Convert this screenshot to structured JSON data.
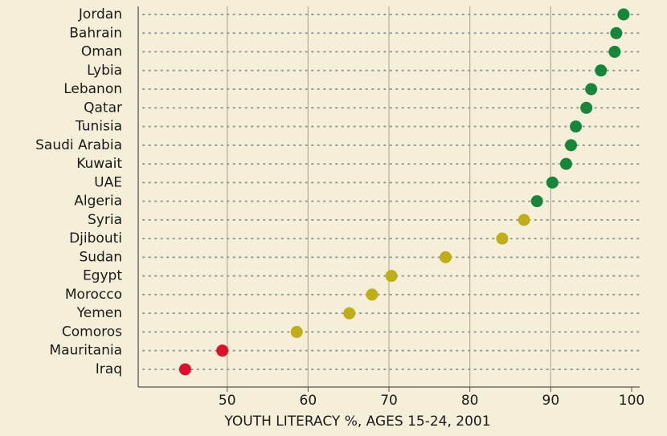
{
  "chart_data": {
    "type": "dot",
    "x_label": "YOUTH LITERACY %, AGES 15-24, 2001",
    "categories": [
      "Jordan",
      "Bahrain",
      "Oman",
      "Lybia",
      "Lebanon",
      "Qatar",
      "Tunisia",
      "Saudi Arabia",
      "Kuwait",
      "UAE",
      "Algeria",
      "Syria",
      "Djibouti",
      "Sudan",
      "Egypt",
      "Morocco",
      "Yemen",
      "Comoros",
      "Mauritania",
      "Iraq"
    ],
    "values": [
      99.0,
      98.1,
      97.9,
      96.2,
      95.0,
      94.4,
      93.1,
      92.5,
      91.9,
      90.2,
      88.3,
      86.7,
      84.0,
      77.0,
      70.3,
      67.9,
      65.1,
      58.6,
      49.4,
      44.8
    ],
    "colors": [
      "#16873a",
      "#16873a",
      "#16873a",
      "#16873a",
      "#16873a",
      "#16873a",
      "#16873a",
      "#16873a",
      "#16873a",
      "#16873a",
      "#16873a",
      "#bfae18",
      "#bfae18",
      "#bfae18",
      "#bfae18",
      "#bfae18",
      "#bfae18",
      "#bfae18",
      "#e0102c",
      "#e0102c"
    ],
    "xlim": [
      39,
      100
    ],
    "xticks": [
      50,
      60,
      70,
      80,
      90,
      100
    ],
    "grid": true
  }
}
